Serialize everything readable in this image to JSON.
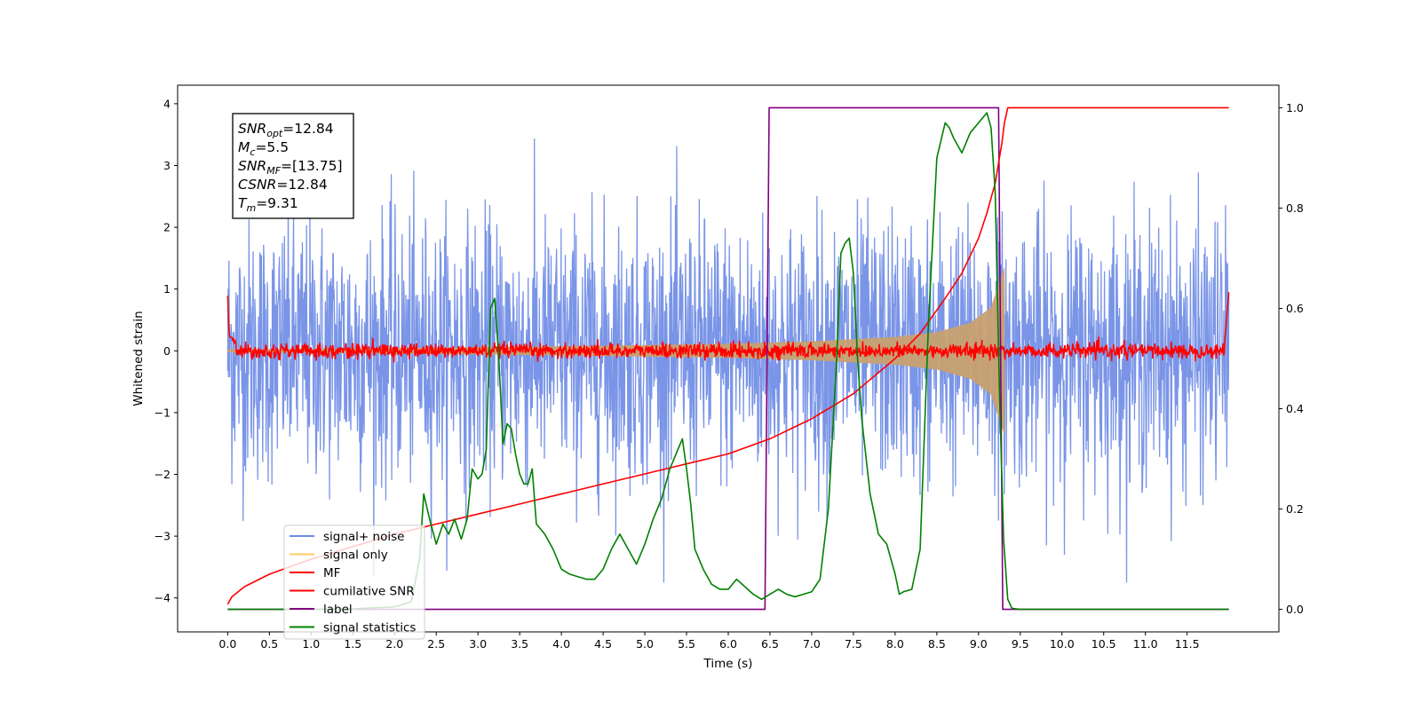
{
  "chart_data": {
    "type": "line",
    "xlabel": "Time (s)",
    "ylabel": "Whitened strain",
    "xlim": [
      -0.6,
      12.6
    ],
    "ylim": [
      -4.55,
      4.3
    ],
    "y2lim": [
      -0.045,
      1.045
    ],
    "x_ticks": [
      0.0,
      0.5,
      1.0,
      1.5,
      2.0,
      2.5,
      3.0,
      3.5,
      4.0,
      4.5,
      5.0,
      5.5,
      6.0,
      6.5,
      7.0,
      7.5,
      8.0,
      8.5,
      9.0,
      9.5,
      10.0,
      10.5,
      11.0,
      11.5
    ],
    "x_tick_labels": [
      "0.0",
      "0.5",
      "1.0",
      "1.5",
      "2.0",
      "2.5",
      "3.0",
      "3.5",
      "4.0",
      "4.5",
      "5.0",
      "5.5",
      "6.0",
      "6.5",
      "7.0",
      "7.5",
      "8.0",
      "8.5",
      "9.0",
      "9.5",
      "10.0",
      "10.5",
      "11.0",
      "11.5"
    ],
    "y_ticks": [
      4,
      3,
      2,
      1,
      0,
      -1,
      -2,
      -3,
      -4
    ],
    "y_tick_labels": [
      "4",
      "3",
      "2",
      "1",
      "0",
      "−1",
      "−2",
      "−3",
      "−4"
    ],
    "y2_ticks": [
      1.0,
      0.8,
      0.6,
      0.4,
      0.2,
      0.0
    ],
    "y2_tick_labels": [
      "1.0",
      "0.8",
      "0.6",
      "0.4",
      "0.2",
      "0.0"
    ],
    "grid": false,
    "legend_position": "lower-left",
    "series": [
      {
        "name": "signal+ noise",
        "color": "#6c8ae4",
        "axis": "left",
        "kind": "noise",
        "x_range": [
          0.0,
          12.0
        ],
        "std": 1.0,
        "min": -3.75,
        "max": 3.95,
        "value_annotation": "dense gaussian noise band, mostly within ±2.5"
      },
      {
        "name": "signal only",
        "color": "#ffa500",
        "axis": "left",
        "kind": "chirp",
        "x_range": [
          0.0,
          9.31
        ],
        "envelope": [
          [
            0.0,
            0.02
          ],
          [
            2.0,
            0.04
          ],
          [
            4.0,
            0.07
          ],
          [
            6.0,
            0.11
          ],
          [
            7.0,
            0.15
          ],
          [
            8.0,
            0.22
          ],
          [
            8.5,
            0.3
          ],
          [
            8.9,
            0.45
          ],
          [
            9.15,
            0.7
          ],
          [
            9.31,
            1.35
          ]
        ]
      },
      {
        "name": "MF",
        "color": "#ff0000",
        "axis": "left",
        "kind": "mf-noise",
        "x_range": [
          0.0,
          12.0
        ],
        "std": 0.06,
        "edge_values": [
          [
            0.0,
            1.0
          ],
          [
            0.02,
            0.3
          ],
          [
            0.1,
            0.15
          ],
          [
            11.95,
            0.15
          ],
          [
            12.0,
            0.95
          ]
        ]
      },
      {
        "name": "cumilative SNR",
        "color": "#ff0000",
        "axis": "right",
        "x": [
          0.0,
          0.05,
          0.2,
          0.5,
          1.0,
          1.5,
          2.0,
          2.5,
          3.0,
          3.5,
          4.0,
          4.5,
          5.0,
          5.5,
          6.0,
          6.5,
          7.0,
          7.5,
          8.0,
          8.3,
          8.6,
          8.8,
          9.0,
          9.1,
          9.2,
          9.28,
          9.31,
          9.35,
          12.0
        ],
        "y": [
          0.01,
          0.025,
          0.045,
          0.07,
          0.1,
          0.125,
          0.15,
          0.17,
          0.19,
          0.21,
          0.23,
          0.25,
          0.27,
          0.29,
          0.31,
          0.34,
          0.38,
          0.43,
          0.5,
          0.55,
          0.62,
          0.67,
          0.74,
          0.79,
          0.85,
          0.93,
          0.97,
          1.0,
          1.0
        ]
      },
      {
        "name": "label",
        "color": "#800080",
        "axis": "right",
        "x": [
          0.0,
          6.44,
          6.49,
          9.24,
          9.29,
          12.0
        ],
        "y": [
          0.0,
          0.0,
          1.0,
          1.0,
          0.0,
          0.0
        ]
      },
      {
        "name": "signal statistics",
        "color": "#008000",
        "axis": "right",
        "x": [
          0.0,
          1.0,
          1.5,
          2.0,
          2.2,
          2.3,
          2.35,
          2.42,
          2.5,
          2.58,
          2.65,
          2.72,
          2.8,
          2.87,
          2.93,
          3.0,
          3.05,
          3.1,
          3.15,
          3.2,
          3.25,
          3.3,
          3.35,
          3.4,
          3.45,
          3.5,
          3.55,
          3.6,
          3.65,
          3.7,
          3.75,
          3.8,
          3.9,
          4.0,
          4.1,
          4.2,
          4.3,
          4.4,
          4.5,
          4.6,
          4.7,
          4.8,
          4.9,
          5.0,
          5.1,
          5.2,
          5.3,
          5.4,
          5.45,
          5.5,
          5.55,
          5.6,
          5.7,
          5.8,
          5.9,
          6.0,
          6.1,
          6.2,
          6.3,
          6.4,
          6.5,
          6.6,
          6.7,
          6.8,
          6.9,
          7.0,
          7.1,
          7.2,
          7.3,
          7.35,
          7.4,
          7.45,
          7.5,
          7.55,
          7.6,
          7.7,
          7.8,
          7.9,
          8.0,
          8.05,
          8.1,
          8.2,
          8.3,
          8.4,
          8.5,
          8.6,
          8.65,
          8.7,
          8.8,
          8.9,
          9.0,
          9.1,
          9.15,
          9.2,
          9.25,
          9.3,
          9.35,
          9.4,
          9.5,
          10.0,
          11.0,
          12.0
        ],
        "y": [
          0.0,
          0.0,
          0.001,
          0.005,
          0.015,
          0.1,
          0.23,
          0.18,
          0.13,
          0.17,
          0.15,
          0.18,
          0.14,
          0.18,
          0.28,
          0.26,
          0.27,
          0.32,
          0.6,
          0.62,
          0.5,
          0.33,
          0.37,
          0.36,
          0.31,
          0.27,
          0.25,
          0.25,
          0.28,
          0.17,
          0.16,
          0.15,
          0.12,
          0.08,
          0.07,
          0.065,
          0.06,
          0.06,
          0.08,
          0.12,
          0.15,
          0.12,
          0.09,
          0.13,
          0.18,
          0.22,
          0.28,
          0.32,
          0.34,
          0.28,
          0.21,
          0.12,
          0.08,
          0.05,
          0.04,
          0.04,
          0.06,
          0.045,
          0.03,
          0.02,
          0.03,
          0.04,
          0.03,
          0.025,
          0.03,
          0.035,
          0.06,
          0.2,
          0.5,
          0.71,
          0.73,
          0.74,
          0.67,
          0.5,
          0.38,
          0.23,
          0.15,
          0.13,
          0.07,
          0.03,
          0.035,
          0.04,
          0.12,
          0.57,
          0.9,
          0.97,
          0.96,
          0.94,
          0.91,
          0.95,
          0.97,
          0.99,
          0.96,
          0.83,
          0.44,
          0.14,
          0.02,
          0.002,
          0.0,
          0.0,
          0.0,
          0.0
        ]
      }
    ],
    "info_box": {
      "lines": [
        {
          "var": "SNR",
          "sub": "opt",
          "value": "=12.84"
        },
        {
          "var": "M",
          "sub": "c",
          "value": "=5.5"
        },
        {
          "var": "SNR",
          "sub": "MF",
          "value": "=[13.75]"
        },
        {
          "var": "CSNR",
          "sub": "",
          "value": "=12.84"
        },
        {
          "var": "T",
          "sub": "m",
          "value": "=9.31"
        }
      ]
    }
  }
}
